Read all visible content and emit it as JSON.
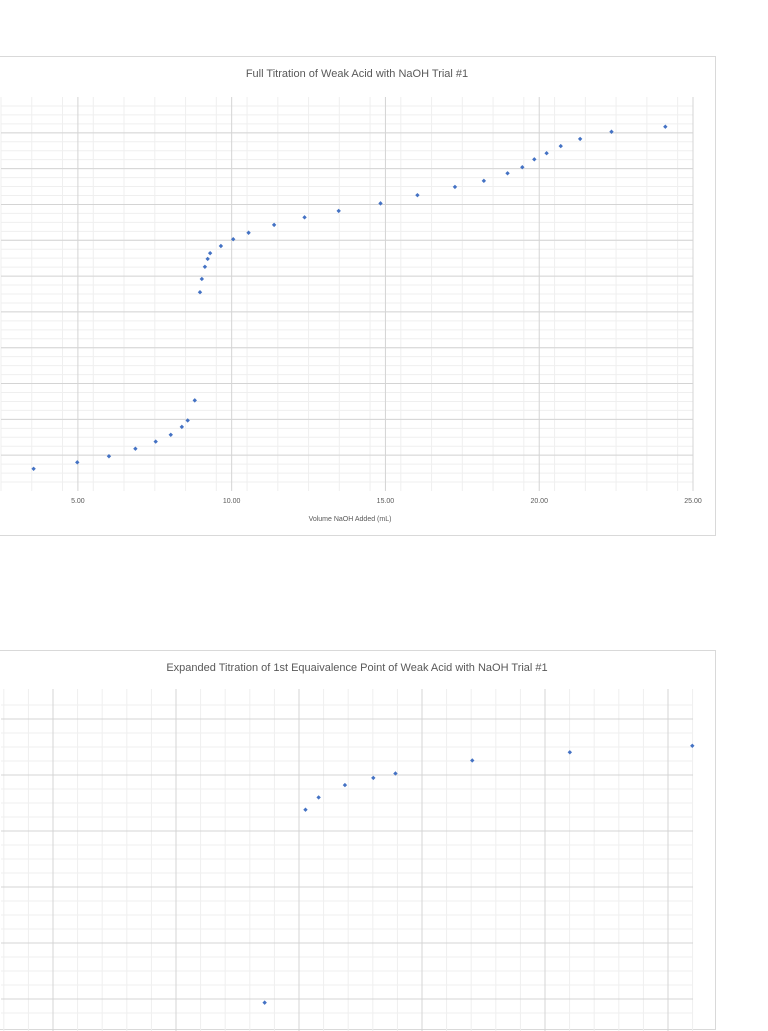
{
  "chart_data": [
    {
      "type": "scatter",
      "title": "Full Titration of Weak Acid with NaOH Trial #1",
      "xlabel": "Volume NaOH Added (mL)",
      "ylabel": "",
      "xlim": [
        2.5,
        25
      ],
      "ylim": [
        0,
        11
      ],
      "x_ticks": [
        "5.00",
        "10.00",
        "15.00",
        "20.00",
        "25.00"
      ],
      "grid": true,
      "marker_color": "#4472c4",
      "series": [
        {
          "x": [
            3.56,
            4.98,
            6.01,
            6.87,
            7.53,
            8.02,
            8.38,
            8.57,
            8.8,
            8.97,
            9.03,
            9.13,
            9.22,
            9.3,
            9.65,
            10.05,
            10.55,
            11.38,
            12.37,
            13.48,
            14.84,
            16.04,
            17.26,
            18.2,
            18.97,
            19.45,
            19.84,
            20.24,
            20.7,
            21.33,
            22.35,
            24.1
          ],
          "y": [
            0.62,
            0.8,
            0.97,
            1.18,
            1.38,
            1.57,
            1.79,
            1.97,
            2.53,
            5.55,
            5.92,
            6.26,
            6.48,
            6.64,
            6.84,
            7.03,
            7.21,
            7.43,
            7.64,
            7.82,
            8.03,
            8.26,
            8.49,
            8.66,
            8.87,
            9.04,
            9.26,
            9.43,
            9.63,
            9.83,
            10.03,
            10.17
          ]
        }
      ]
    },
    {
      "type": "scatter",
      "title": "Expanded Titration of 1st Equaivalence Point of Weak Acid with NaOH Trial #1",
      "xlabel": "",
      "ylabel": "",
      "xlim": [
        0,
        1
      ],
      "ylim": [
        0,
        1
      ],
      "grid": true,
      "marker_color": "#4472c4",
      "series": [
        {
          "x": [
            0.381,
            0.44,
            0.459,
            0.497,
            0.538,
            0.57,
            0.681,
            0.822,
            0.999
          ],
          "y": [
            0.083,
            0.647,
            0.683,
            0.719,
            0.74,
            0.753,
            0.791,
            0.815,
            0.834
          ]
        }
      ]
    }
  ]
}
